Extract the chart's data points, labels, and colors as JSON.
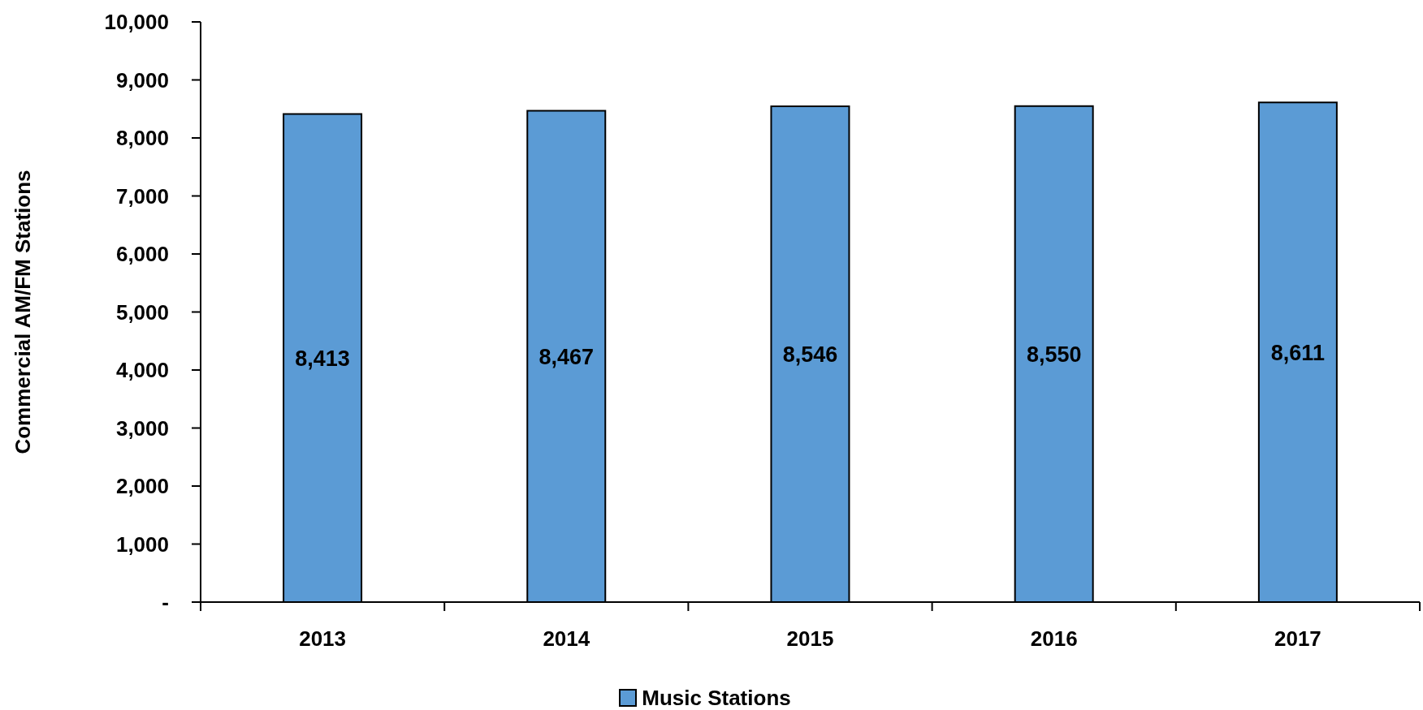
{
  "chart_data": {
    "type": "bar",
    "ylabel": "Commercial AM/FM Stations",
    "categories": [
      "2013",
      "2014",
      "2015",
      "2016",
      "2017"
    ],
    "series": [
      {
        "name": "Music Stations",
        "color": "#5b9bd5",
        "values": [
          8413,
          8467,
          8546,
          8550,
          8611
        ],
        "value_labels": [
          "8,413",
          "8,467",
          "8,546",
          "8,550",
          "8,611"
        ]
      }
    ],
    "ylim": [
      0,
      10000
    ],
    "yticks": [
      {
        "value": 0,
        "label": "-"
      },
      {
        "value": 1000,
        "label": "1,000"
      },
      {
        "value": 2000,
        "label": "2,000"
      },
      {
        "value": 3000,
        "label": "3,000"
      },
      {
        "value": 4000,
        "label": "4,000"
      },
      {
        "value": 5000,
        "label": "5,000"
      },
      {
        "value": 6000,
        "label": "6,000"
      },
      {
        "value": 7000,
        "label": "7,000"
      },
      {
        "value": 8000,
        "label": "8,000"
      },
      {
        "value": 9000,
        "label": "9,000"
      },
      {
        "value": 10000,
        "label": "10,000"
      }
    ],
    "legend": "bottom",
    "grid": false
  }
}
